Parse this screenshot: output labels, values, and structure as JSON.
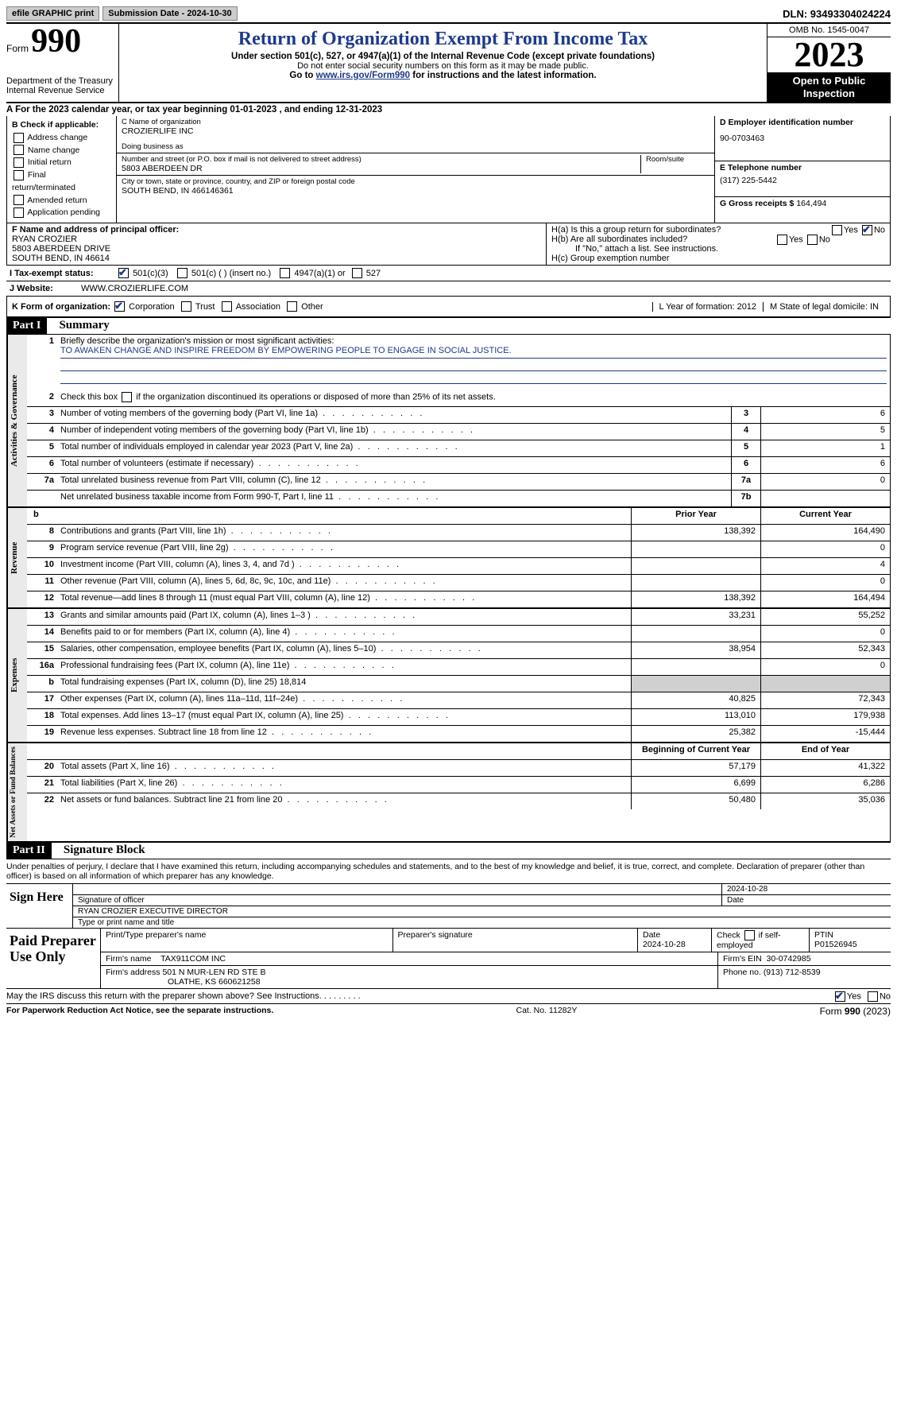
{
  "topbar": {
    "efile": "efile GRAPHIC print",
    "submission": "Submission Date - 2024-10-30",
    "dln": "DLN: 93493304024224"
  },
  "header": {
    "form_label": "Form",
    "form_number": "990",
    "dept1": "Department of the Treasury",
    "dept2": "Internal Revenue Service",
    "title": "Return of Organization Exempt From Income Tax",
    "sub1": "Under section 501(c), 527, or 4947(a)(1) of the Internal Revenue Code (except private foundations)",
    "sub2": "Do not enter social security numbers on this form as it may be made public.",
    "sub3_pre": "Go to ",
    "sub3_link": "www.irs.gov/Form990",
    "sub3_post": " for instructions and the latest information.",
    "omb": "OMB No. 1545-0047",
    "year": "2023",
    "open1": "Open to Public",
    "open2": "Inspection"
  },
  "rowA": "A  For the 2023 calendar year, or tax year beginning 01-01-2023    , and ending 12-31-2023",
  "colB": {
    "title": "B Check if applicable:",
    "items": [
      "Address change",
      "Name change",
      "Initial return",
      "Final return/terminated",
      "Amended return",
      "Application pending"
    ]
  },
  "colC": {
    "name_label": "C Name of organization",
    "name": "CROZIERLIFE INC",
    "dba_label": "Doing business as",
    "addr_label": "Number and street (or P.O. box if mail is not delivered to street address)",
    "room_label": "Room/suite",
    "addr": "5803 ABERDEEN DR",
    "city_label": "City or town, state or province, country, and ZIP or foreign postal code",
    "city": "SOUTH BEND, IN  466146361"
  },
  "colD": {
    "ein_label": "D Employer identification number",
    "ein": "90-0703463",
    "tel_label": "E Telephone number",
    "tel": "(317) 225-5442",
    "gross_label": "G Gross receipts $",
    "gross": "164,494"
  },
  "rowF": {
    "label": "F  Name and address of principal officer:",
    "name": "RYAN CROZIER",
    "addr1": "5803 ABERDEEN DRIVE",
    "addr2": "SOUTH BEND, IN  46614"
  },
  "rowH": {
    "ha": "H(a)  Is this a group return for subordinates?",
    "hb": "H(b)  Are all subordinates included?",
    "hb_note": "If \"No,\" attach a list. See instructions.",
    "hc": "H(c)  Group exemption number"
  },
  "rowI": {
    "label": "I     Tax-exempt status:",
    "o1": "501(c)(3)",
    "o2": "501(c) (   ) (insert no.)",
    "o3": "4947(a)(1) or",
    "o4": "527"
  },
  "rowJ": {
    "label": "J     Website:",
    "value": "WWW.CROZIERLIFE.COM"
  },
  "rowK": {
    "label": "K Form of organization:",
    "opts": [
      "Corporation",
      "Trust",
      "Association",
      "Other"
    ],
    "l": "L Year of formation: 2012",
    "m": "M State of legal domicile: IN"
  },
  "part1": {
    "header": "Part I",
    "title": "Summary"
  },
  "summary": {
    "governance": {
      "label": "Activities & Governance",
      "line1": {
        "num": "1",
        "desc": "Briefly describe the organization's mission or most significant activities:",
        "mission": "TO AWAKEN CHANGE AND INSPIRE FREEDOM BY EMPOWERING PEOPLE TO ENGAGE IN SOCIAL JUSTICE."
      },
      "line2": {
        "num": "2",
        "desc": "Check this box     if the organization discontinued its operations or disposed of more than 25% of its net assets."
      },
      "lines": [
        {
          "num": "3",
          "desc": "Number of voting members of the governing body (Part VI, line 1a)",
          "code": "3",
          "val": "6"
        },
        {
          "num": "4",
          "desc": "Number of independent voting members of the governing body (Part VI, line 1b)",
          "code": "4",
          "val": "5"
        },
        {
          "num": "5",
          "desc": "Total number of individuals employed in calendar year 2023 (Part V, line 2a)",
          "code": "5",
          "val": "1"
        },
        {
          "num": "6",
          "desc": "Total number of volunteers (estimate if necessary)",
          "code": "6",
          "val": "6"
        },
        {
          "num": "7a",
          "desc": "Total unrelated business revenue from Part VIII, column (C), line 12",
          "code": "7a",
          "val": "0"
        },
        {
          "num": "",
          "desc": "Net unrelated business taxable income from Form 990-T, Part I, line 11",
          "code": "7b",
          "val": ""
        }
      ]
    },
    "revenue": {
      "label": "Revenue",
      "header": {
        "b": "b",
        "prior": "Prior Year",
        "current": "Current Year"
      },
      "lines": [
        {
          "num": "8",
          "desc": "Contributions and grants (Part VIII, line 1h)",
          "prior": "138,392",
          "current": "164,490"
        },
        {
          "num": "9",
          "desc": "Program service revenue (Part VIII, line 2g)",
          "prior": "",
          "current": "0"
        },
        {
          "num": "10",
          "desc": "Investment income (Part VIII, column (A), lines 3, 4, and 7d )",
          "prior": "",
          "current": "4"
        },
        {
          "num": "11",
          "desc": "Other revenue (Part VIII, column (A), lines 5, 6d, 8c, 9c, 10c, and 11e)",
          "prior": "",
          "current": "0"
        },
        {
          "num": "12",
          "desc": "Total revenue—add lines 8 through 11 (must equal Part VIII, column (A), line 12)",
          "prior": "138,392",
          "current": "164,494"
        }
      ]
    },
    "expenses": {
      "label": "Expenses",
      "lines": [
        {
          "num": "13",
          "desc": "Grants and similar amounts paid (Part IX, column (A), lines 1–3 )",
          "prior": "33,231",
          "current": "55,252"
        },
        {
          "num": "14",
          "desc": "Benefits paid to or for members (Part IX, column (A), line 4)",
          "prior": "",
          "current": "0"
        },
        {
          "num": "15",
          "desc": "Salaries, other compensation, employee benefits (Part IX, column (A), lines 5–10)",
          "prior": "38,954",
          "current": "52,343"
        },
        {
          "num": "16a",
          "desc": "Professional fundraising fees (Part IX, column (A), line 11e)",
          "prior": "",
          "current": "0"
        },
        {
          "num": "b",
          "desc": "Total fundraising expenses (Part IX, column (D), line 25) 18,814",
          "grey": true
        },
        {
          "num": "17",
          "desc": "Other expenses (Part IX, column (A), lines 11a–11d, 11f–24e)",
          "prior": "40,825",
          "current": "72,343"
        },
        {
          "num": "18",
          "desc": "Total expenses. Add lines 13–17 (must equal Part IX, column (A), line 25)",
          "prior": "113,010",
          "current": "179,938"
        },
        {
          "num": "19",
          "desc": "Revenue less expenses. Subtract line 18 from line 12",
          "prior": "25,382",
          "current": "-15,444"
        }
      ]
    },
    "netassets": {
      "label": "Net Assets or Fund Balances",
      "header": {
        "prior": "Beginning of Current Year",
        "current": "End of Year"
      },
      "lines": [
        {
          "num": "20",
          "desc": "Total assets (Part X, line 16)",
          "prior": "57,179",
          "current": "41,322"
        },
        {
          "num": "21",
          "desc": "Total liabilities (Part X, line 26)",
          "prior": "6,699",
          "current": "6,286"
        },
        {
          "num": "22",
          "desc": "Net assets or fund balances. Subtract line 21 from line 20",
          "prior": "50,480",
          "current": "35,036"
        }
      ]
    }
  },
  "part2": {
    "header": "Part II",
    "title": "Signature Block"
  },
  "declare": "Under penalties of perjury, I declare that I have examined this return, including accompanying schedules and statements, and to the best of my knowledge and belief, it is true, correct, and complete. Declaration of preparer (other than officer) is based on all information of which preparer has any knowledge.",
  "sign": {
    "left": "Sign Here",
    "date": "2024-10-28",
    "sig_label": "Signature of officer",
    "date_label": "Date",
    "name": "RYAN CROZIER  EXECUTIVE DIRECTOR",
    "type_label": "Type or print name and title"
  },
  "prep": {
    "left": "Paid Preparer Use Only",
    "h1": "Print/Type preparer's name",
    "h2": "Preparer's signature",
    "h3": "Date",
    "date": "2024-10-28",
    "h4": "Check      if self-employed",
    "h5": "PTIN",
    "ptin": "P01526945",
    "firm_name_label": "Firm's name",
    "firm_name": "TAX911COM INC",
    "firm_ein_label": "Firm's EIN",
    "firm_ein": "30-0742985",
    "firm_addr_label": "Firm's address",
    "firm_addr1": "501 N MUR-LEN RD STE B",
    "firm_addr2": "OLATHE, KS  660621258",
    "phone_label": "Phone no.",
    "phone": "(913) 712-8539"
  },
  "discuss": "May the IRS discuss this return with the preparer shown above? See Instructions.    .    .    .    .    .    .    .    .",
  "footer": {
    "left": "For Paperwork Reduction Act Notice, see the separate instructions.",
    "mid": "Cat. No. 11282Y",
    "right_pre": "Form ",
    "right_form": "990",
    "right_post": " (2023)"
  }
}
